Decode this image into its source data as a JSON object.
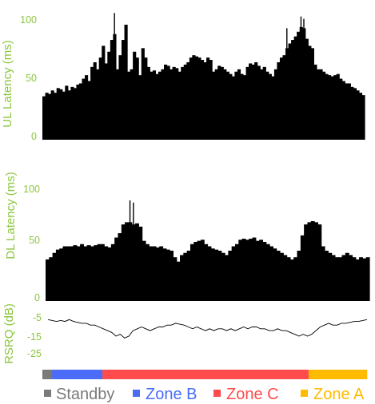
{
  "colors": {
    "axis_text": "#8cc63f",
    "bars": "#000000",
    "rsrq_line": "#000000"
  },
  "chart_data": [
    {
      "type": "bar",
      "ylabel": "UL Latency (ms)",
      "ylim": [
        0,
        100
      ],
      "yticks": [
        "0",
        "50",
        "100"
      ],
      "grid": false,
      "values": [
        37,
        40,
        39,
        42,
        40,
        44,
        43,
        41,
        46,
        42,
        45,
        44,
        47,
        48,
        52,
        55,
        50,
        62,
        66,
        60,
        70,
        80,
        65,
        75,
        85,
        90,
        60,
        72,
        85,
        98,
        58,
        60,
        75,
        70,
        55,
        78,
        70,
        62,
        58,
        59,
        56,
        58,
        60,
        64,
        63,
        60,
        62,
        61,
        58,
        62,
        64,
        66,
        70,
        72,
        71,
        70,
        68,
        66,
        70,
        68,
        58,
        60,
        63,
        62,
        60,
        58,
        56,
        54,
        58,
        60,
        56,
        55,
        62,
        65,
        64,
        66,
        63,
        60,
        62,
        58,
        56,
        54,
        60,
        66,
        70,
        72,
        78,
        82,
        85,
        88,
        92,
        96,
        95,
        86,
        80,
        78,
        64,
        60,
        60,
        58,
        56,
        55,
        54,
        55,
        56,
        52,
        50,
        48,
        48,
        45,
        44,
        42,
        40,
        38
      ],
      "outliers": [
        {
          "index": 25,
          "value": 108
        },
        {
          "index": 29,
          "value": 98
        },
        {
          "index": 86,
          "value": 95
        },
        {
          "index": 91,
          "value": 105
        },
        {
          "index": 92,
          "value": 103
        }
      ]
    },
    {
      "type": "bar",
      "ylabel": "DL Latency (ms)",
      "ylim": [
        0,
        100
      ],
      "yticks": [
        "0",
        "50",
        "100"
      ],
      "grid": false,
      "values": [
        38,
        40,
        44,
        47,
        48,
        50,
        50,
        50,
        51,
        50,
        52,
        50,
        51,
        50,
        51,
        52,
        52,
        50,
        49,
        52,
        58,
        62,
        70,
        72,
        72,
        70,
        71,
        68,
        55,
        52,
        50,
        50,
        49,
        50,
        48,
        47,
        46,
        40,
        36,
        42,
        44,
        46,
        52,
        54,
        55,
        56,
        52,
        50,
        48,
        47,
        46,
        44,
        42,
        46,
        50,
        52,
        56,
        57,
        56,
        57,
        58,
        55,
        56,
        54,
        52,
        50,
        48,
        46,
        44,
        42,
        40,
        38,
        40,
        46,
        60,
        70,
        72,
        73,
        72,
        70,
        50,
        46,
        44,
        42,
        40,
        40,
        42,
        44,
        42,
        40,
        38,
        40,
        39,
        40
      ],
      "outliers": [
        {
          "index": 24,
          "value": 92
        },
        {
          "index": 25,
          "value": 90
        }
      ]
    },
    {
      "type": "line",
      "ylabel": "RSRQ (dB)",
      "ylim": [
        -25,
        -5
      ],
      "yticks": [
        "-5",
        "-15",
        "-25"
      ],
      "grid": false,
      "values": [
        -6,
        -6.5,
        -7,
        -6.5,
        -7,
        -6,
        -7,
        -7.5,
        -8,
        -8,
        -9,
        -9,
        -10,
        -11,
        -12,
        -13,
        -15,
        -14,
        -16,
        -15,
        -12,
        -11,
        -10,
        -11,
        -12,
        -11,
        -10,
        -10,
        -9,
        -9,
        -8,
        -8.5,
        -9,
        -10,
        -11,
        -10,
        -11,
        -12,
        -11,
        -12,
        -11,
        -11,
        -12,
        -11,
        -12,
        -11,
        -10,
        -11,
        -10,
        -10,
        -11,
        -11,
        -12,
        -12,
        -11,
        -12,
        -12,
        -13,
        -14,
        -15,
        -14,
        -15,
        -14,
        -12,
        -10,
        -9,
        -8,
        -9,
        -9,
        -8,
        -8,
        -7.5,
        -7,
        -7,
        -6.5,
        -6
      ]
    }
  ],
  "zone_bar": [
    {
      "zone": "Standby",
      "fraction": 0.03,
      "color": "#7a7a7a"
    },
    {
      "zone": "Zone B",
      "fraction": 0.155,
      "color": "#4a6cf7"
    },
    {
      "zone": "Zone C",
      "fraction": 0.635,
      "color": "#ff4b4b"
    },
    {
      "zone": "Zone A",
      "fraction": 0.18,
      "color": "#ffbb00"
    }
  ],
  "legend": [
    {
      "label": "Standby",
      "color": "#7a7a7a"
    },
    {
      "label": "Zone B",
      "color": "#4a6cf7"
    },
    {
      "label": "Zone C",
      "color": "#ff4b4b"
    },
    {
      "label": "Zone A",
      "color": "#ffbb00"
    }
  ]
}
